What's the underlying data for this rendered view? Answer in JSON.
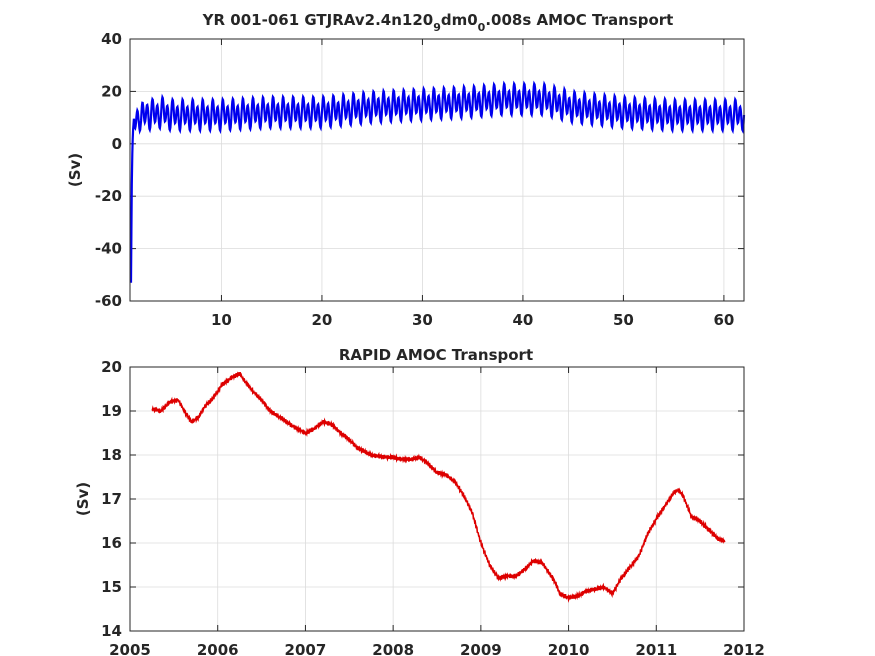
{
  "chart_data": [
    {
      "type": "line",
      "title_main": "YR 001-061 GTJRAv2.4n120",
      "title_sub1": "9",
      "title_mid": "dm0",
      "title_sub2": "0",
      "title_end": ".008s AMOC Transport",
      "xlabel": "",
      "ylabel": "(Sv)",
      "xlim": [
        0.9,
        62
      ],
      "ylim": [
        -60,
        40
      ],
      "xticks": [
        10,
        20,
        30,
        40,
        50,
        60
      ],
      "yticks": [
        -60,
        -40,
        -20,
        0,
        20,
        40
      ],
      "grid": true,
      "series_color": "#0000ee",
      "series": [
        {
          "x": [
            1.0,
            1.05,
            1.1,
            1.15,
            1.2,
            1.3,
            1.5,
            1.8,
            2.0,
            2.5,
            3.0,
            4.0,
            5.0,
            10.0,
            15.0,
            20.0,
            25.0,
            30.0,
            35.0,
            38.0,
            42.0,
            45.0,
            50.0,
            55.0,
            60.0,
            62.0
          ],
          "values": [
            -53,
            -30,
            -8,
            0,
            5,
            10,
            8,
            12,
            9,
            12,
            11,
            12,
            11,
            11,
            12,
            12,
            14,
            15,
            16,
            17,
            17,
            14,
            12,
            11,
            11,
            11
          ]
        }
      ],
      "seasonal_amplitude": 4.5
    },
    {
      "type": "line",
      "title": "RAPID AMOC Transport",
      "xlabel": "",
      "ylabel": "(Sv)",
      "xlim": [
        2005,
        2012
      ],
      "ylim": [
        14,
        20
      ],
      "xticks": [
        2005,
        2006,
        2007,
        2008,
        2009,
        2010,
        2011,
        2012
      ],
      "yticks": [
        14,
        15,
        16,
        17,
        18,
        19,
        20
      ],
      "grid": true,
      "series_color": "#dd0000",
      "series": [
        {
          "x": [
            2005.25,
            2005.35,
            2005.45,
            2005.55,
            2005.62,
            2005.7,
            2005.78,
            2005.85,
            2005.95,
            2006.05,
            2006.15,
            2006.25,
            2006.3,
            2006.4,
            2006.5,
            2006.6,
            2006.75,
            2006.9,
            2007.0,
            2007.1,
            2007.2,
            2007.3,
            2007.4,
            2007.5,
            2007.6,
            2007.75,
            2007.9,
            2008.0,
            2008.1,
            2008.2,
            2008.3,
            2008.4,
            2008.5,
            2008.6,
            2008.7,
            2008.8,
            2008.9,
            2009.0,
            2009.1,
            2009.2,
            2009.3,
            2009.4,
            2009.5,
            2009.6,
            2009.7,
            2009.75,
            2009.85,
            2009.9,
            2010.0,
            2010.1,
            2010.2,
            2010.3,
            2010.4,
            2010.5,
            2010.6,
            2010.7,
            2010.8,
            2010.9,
            2011.0,
            2011.1,
            2011.2,
            2011.25,
            2011.3,
            2011.4,
            2011.5,
            2011.6,
            2011.7,
            2011.78
          ],
          "values": [
            19.05,
            19.0,
            19.2,
            19.25,
            19.0,
            18.75,
            18.85,
            19.1,
            19.3,
            19.6,
            19.75,
            19.85,
            19.7,
            19.45,
            19.25,
            19.0,
            18.8,
            18.6,
            18.5,
            18.6,
            18.75,
            18.7,
            18.5,
            18.35,
            18.15,
            18.0,
            17.95,
            17.95,
            17.9,
            17.9,
            17.95,
            17.8,
            17.6,
            17.55,
            17.4,
            17.1,
            16.7,
            16.0,
            15.5,
            15.2,
            15.25,
            15.25,
            15.4,
            15.6,
            15.55,
            15.4,
            15.1,
            14.85,
            14.75,
            14.8,
            14.9,
            14.95,
            15.0,
            14.85,
            15.2,
            15.45,
            15.7,
            16.2,
            16.55,
            16.85,
            17.15,
            17.2,
            17.1,
            16.6,
            16.5,
            16.3,
            16.1,
            16.05
          ]
        }
      ]
    }
  ]
}
